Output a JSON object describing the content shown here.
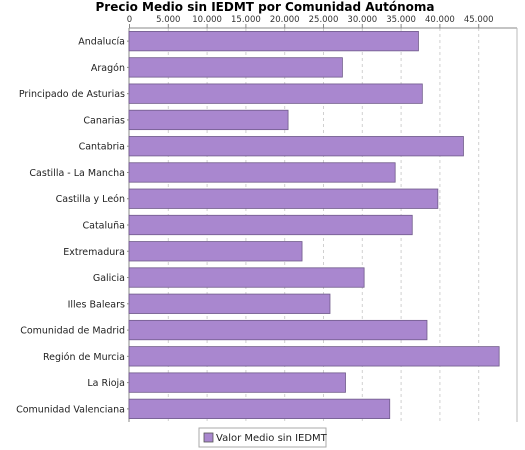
{
  "chart_data": {
    "type": "bar",
    "orientation": "horizontal",
    "title": "Precio Medio sin IEDMT por Comunidad Autónoma",
    "xlabel": "",
    "ylabel": "",
    "xlim": [
      0,
      50000
    ],
    "x_ticks": [
      "0",
      "5.000",
      "10.000",
      "15.000",
      "20.000",
      "25.000",
      "30.000",
      "35.000",
      "40.000",
      "45.000"
    ],
    "x_tick_values": [
      0,
      5000,
      10000,
      15000,
      20000,
      25000,
      30000,
      35000,
      40000,
      45000
    ],
    "grid": "vertical dashed",
    "legend_position": "bottom",
    "categories": [
      "Andalucía",
      "Aragón",
      "Principado de Asturias",
      "Canarias",
      "Cantabria",
      "Castilla - La Mancha",
      "Castilla y León",
      "Cataluña",
      "Extremadura",
      "Galicia",
      "Illes Balears",
      "Comunidad de Madrid",
      "Región de Murcia",
      "La Rioja",
      "Comunidad Valenciana"
    ],
    "series": [
      {
        "name": "Valor Medio sin IEDMT",
        "color": "#a987cf",
        "values": [
          37300,
          27500,
          37800,
          20500,
          43100,
          34300,
          39800,
          36500,
          22300,
          30300,
          25900,
          38400,
          47700,
          27900,
          33600
        ]
      }
    ]
  }
}
